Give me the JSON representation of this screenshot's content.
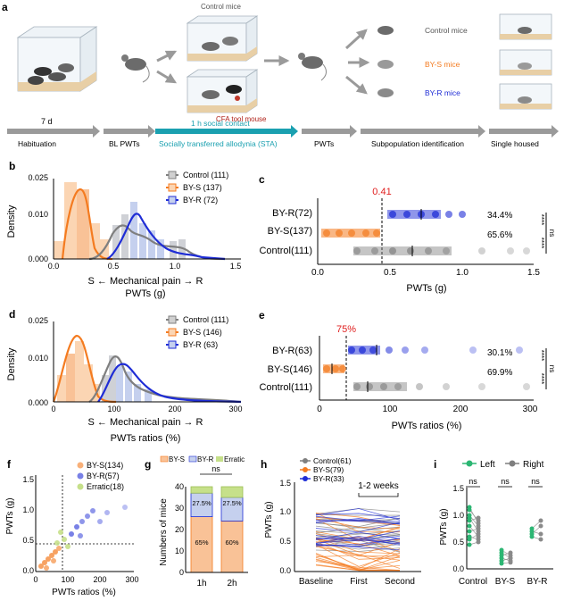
{
  "panel_a": {
    "label": "a",
    "control_mice_top": "Control mice",
    "cfa_tool_mouse": "CFA tool mouse",
    "control_mice_right": "Control mice",
    "bys_mice": "BY-S mice",
    "byr_mice": "BY-R mice",
    "days": "7 d",
    "social_contact": "1 h social contact",
    "timeline": [
      "Habituation",
      "BL PWTs",
      "Socially transferred allodynia (STA)",
      "PWTs",
      "Subpopulation identification",
      "Single housed"
    ]
  },
  "colors": {
    "control": "#7f7f7f",
    "bys": "#f47b20",
    "byr": "#1f2dd6",
    "erratic": "#c6e08a",
    "teal": "#1aa0b0",
    "red": "#e02020",
    "green": "#2cb673"
  },
  "panel_b": {
    "label": "b",
    "ylabel": "Density",
    "xlabel_line1": "S ← Mechanical pain → R",
    "xlabel_line2": "PWTs  (g)",
    "yticks": [
      "0.000",
      "0.010",
      "0.025"
    ],
    "xticks": [
      "0.0",
      "0.5",
      "1.0",
      "1.5"
    ],
    "legend": [
      "Control (111)",
      "BY-S (137)",
      "BY-R (72)"
    ]
  },
  "panel_c": {
    "label": "c",
    "threshold": "0.41",
    "xlabel": "PWTs (g)",
    "xticks": [
      "0.0",
      "0.5",
      "1.0",
      "1.5"
    ],
    "rows": [
      "BY-R(72)",
      "BY-S(137)",
      "Control(111)"
    ],
    "pcts": [
      "34.4%",
      "65.6%"
    ],
    "sig": [
      "****",
      "****",
      "ns"
    ]
  },
  "panel_d": {
    "label": "d",
    "ylabel": "Density",
    "xlabel_line1": "S ← Mechanical pain → R",
    "xlabel_line2": "PWTs ratios (%)",
    "yticks": [
      "0.000",
      "0.010",
      "0.025"
    ],
    "xticks": [
      "0",
      "100",
      "200",
      "300"
    ],
    "legend": [
      "Control (111)",
      "BY-S (146)",
      "BY-R (63)"
    ]
  },
  "panel_e": {
    "label": "e",
    "threshold": "75%",
    "xlabel": "PWTs ratios (%)",
    "xticks": [
      "0",
      "100",
      "200",
      "300"
    ],
    "rows": [
      "BY-R(63)",
      "BY-S(146)",
      "Control(111)"
    ],
    "pcts": [
      "30.1%",
      "69.9%"
    ],
    "sig": [
      "****",
      "****",
      "ns"
    ]
  },
  "panel_f": {
    "label": "f",
    "ylabel": "PWTs (g)",
    "xlabel": "PWTs ratios (%)",
    "yticks": [
      "0.0",
      "0.5",
      "1.0",
      "1.5"
    ],
    "xticks": [
      "0",
      "100",
      "200",
      "300"
    ],
    "legend": [
      "BY-S(134)",
      "BY-R(57)",
      "Erratic(18)"
    ]
  },
  "panel_g": {
    "label": "g",
    "ylabel": "Numbers of mice",
    "legend": [
      "BY-S",
      "BY-R",
      "Erratic"
    ],
    "yticks": [
      "0",
      "10",
      "20",
      "30",
      "40"
    ],
    "ns": "ns",
    "bars": [
      {
        "name": "1h",
        "bys_label": "65%",
        "byr_label": "27.5%",
        "bys": 26,
        "byr": 11,
        "erratic": 3
      },
      {
        "name": "2h",
        "bys_label": "60%",
        "byr_label": "27.5%",
        "bys": 24,
        "byr": 11,
        "erratic": 5
      }
    ]
  },
  "panel_h": {
    "label": "h",
    "ylabel": "PWTs (g)",
    "weeks": "1-2 weeks",
    "yticks": [
      "0.0",
      "0.5",
      "1.0",
      "1.5"
    ],
    "xticks": [
      "Baseline",
      "First",
      "Second"
    ],
    "legend": [
      "Control(61)",
      "BY-S(79)",
      "BY-R(33)"
    ]
  },
  "panel_i": {
    "label": "i",
    "ylabel": "PWTs (g)",
    "legend": [
      "Left",
      "Right"
    ],
    "yticks": [
      "0.0",
      "0.5",
      "1.0",
      "1.5"
    ],
    "xticks": [
      "Control",
      "BY-S",
      "BY-R"
    ],
    "ns": [
      "ns",
      "ns",
      "ns"
    ]
  }
}
